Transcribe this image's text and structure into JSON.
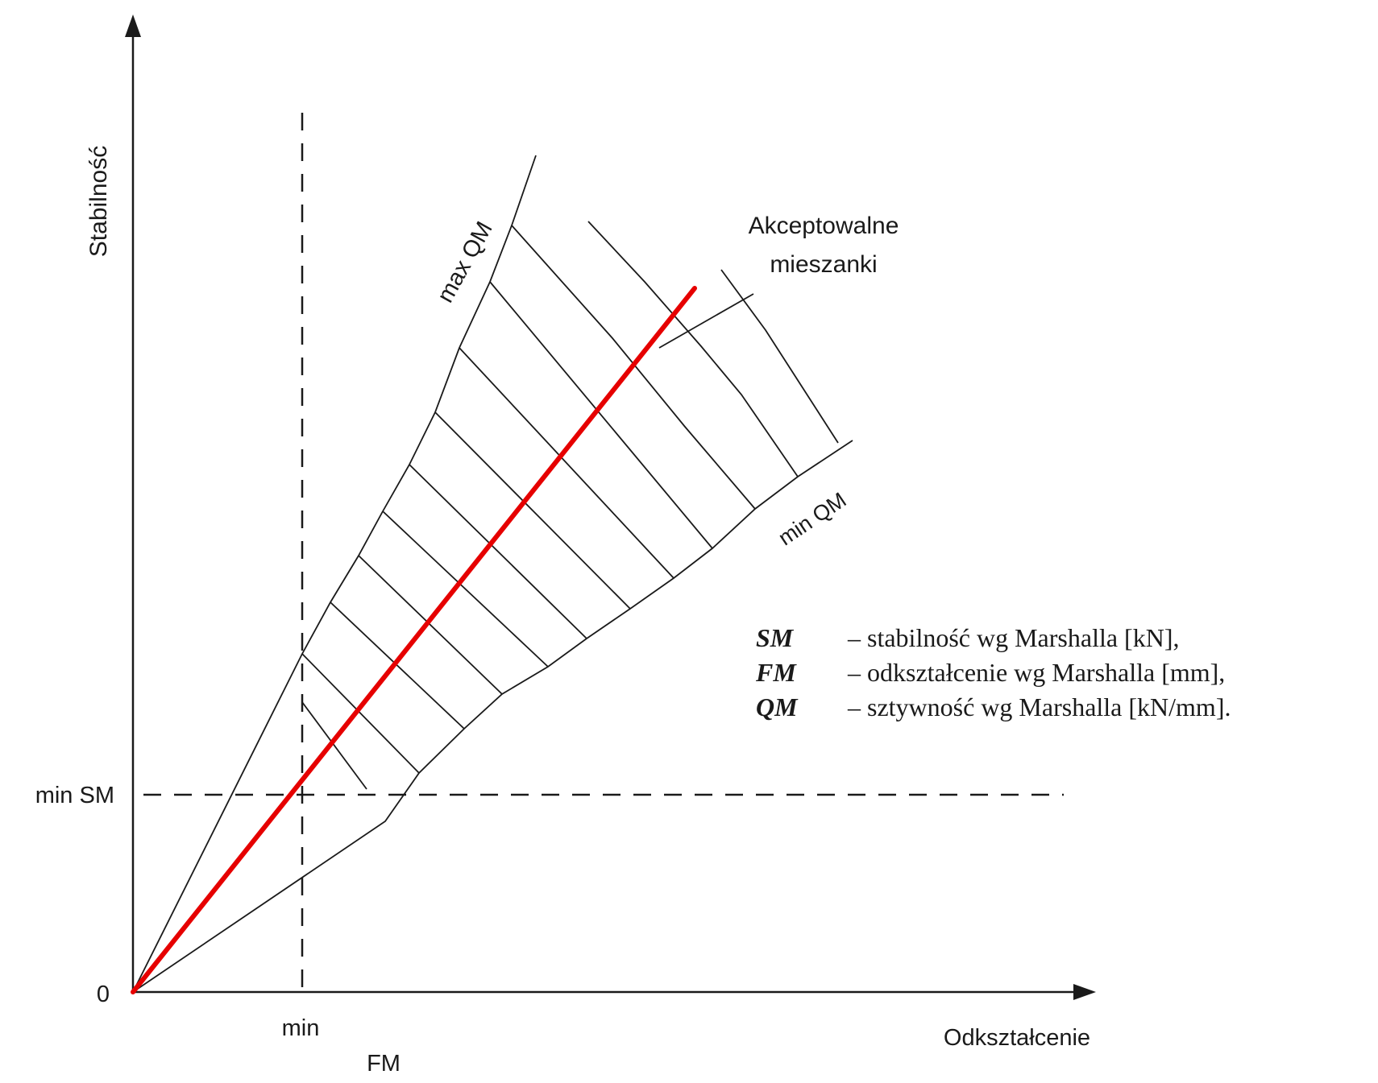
{
  "diagram": {
    "axes": {
      "y_label": "Stabilność",
      "x_label": "Odkształcenie",
      "origin_label": "0",
      "x_min_label": "min",
      "x_param_label": "FM",
      "y_min_label": "min SM"
    },
    "lines": {
      "max_label": "max QM",
      "min_label": "min QM"
    },
    "region": {
      "label_line1": "Akceptowalne",
      "label_line2": "mieszanki"
    },
    "legend": [
      {
        "symbol": "SM",
        "text": "– stabilność wg Marshalla [kN],"
      },
      {
        "symbol": "FM",
        "text": "– odkształcenie wg Marshalla [mm],"
      },
      {
        "symbol": "QM",
        "text": "– sztywność wg Marshalla [kN/mm]."
      }
    ],
    "colors": {
      "ink": "#1a1a1a",
      "highlight": "#e60000",
      "background": "#ffffff"
    }
  }
}
